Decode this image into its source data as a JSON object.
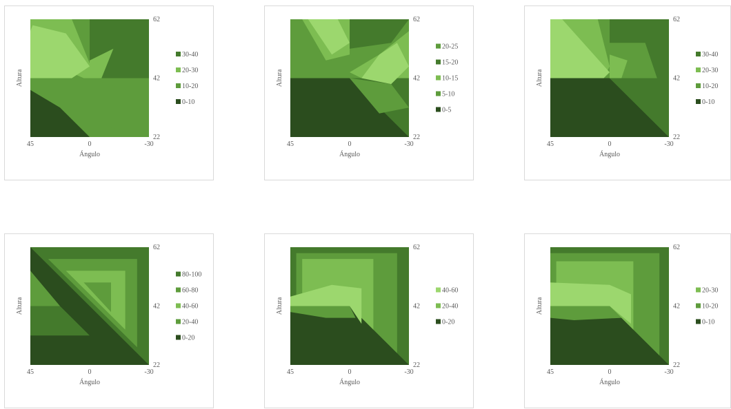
{
  "colors": {
    "band_light": "#9cd76e",
    "band_2": "#7dbd52",
    "band_3": "#5e9c3c",
    "band_4": "#447a2c",
    "band_dark": "#2b4d1e",
    "panel_border": "#d9d9d9",
    "text": "#595959"
  },
  "chart_data": [
    {
      "type": "contour",
      "xlabel": "Ángulo",
      "ylabel": "Altura",
      "x_ticks": [
        "45",
        "0",
        "-30"
      ],
      "y_ticks": [
        "62",
        "42",
        "22"
      ],
      "x_range": [
        45,
        -30
      ],
      "y_range": [
        22,
        62
      ],
      "legend": [
        "30-40",
        "20-30",
        "10-20",
        "0-10"
      ]
    },
    {
      "type": "contour",
      "xlabel": "Ángulo",
      "ylabel": "Altura",
      "x_ticks": [
        "45",
        "0",
        "-30"
      ],
      "y_ticks": [
        "62",
        "42",
        "22"
      ],
      "x_range": [
        45,
        -30
      ],
      "y_range": [
        22,
        62
      ],
      "legend": [
        "20-25",
        "15-20",
        "10-15",
        "5-10",
        "0-5"
      ]
    },
    {
      "type": "contour",
      "xlabel": "Ángulo",
      "ylabel": "Altura",
      "x_ticks": [
        "45",
        "0",
        "-30"
      ],
      "y_ticks": [
        "62",
        "42",
        "22"
      ],
      "x_range": [
        45,
        -30
      ],
      "y_range": [
        22,
        62
      ],
      "legend": [
        "30-40",
        "20-30",
        "10-20",
        "0-10"
      ]
    },
    {
      "type": "contour",
      "xlabel": "Ángulo",
      "ylabel": "Altura",
      "x_ticks": [
        "45",
        "0",
        "-30"
      ],
      "y_ticks": [
        "62",
        "42",
        "22"
      ],
      "x_range": [
        45,
        -30
      ],
      "y_range": [
        22,
        62
      ],
      "legend": [
        "80-100",
        "60-80",
        "40-60",
        "20-40",
        "0-20"
      ]
    },
    {
      "type": "contour",
      "xlabel": "Ángulo",
      "ylabel": "Altura",
      "x_ticks": [
        "45",
        "0",
        "-30"
      ],
      "y_ticks": [
        "62",
        "42",
        "22"
      ],
      "x_range": [
        45,
        -30
      ],
      "y_range": [
        22,
        62
      ],
      "legend": [
        "40-60",
        "20-40",
        "0-20"
      ]
    },
    {
      "type": "contour",
      "xlabel": "Ángulo",
      "ylabel": "Altura",
      "x_ticks": [
        "45",
        "0",
        "-30"
      ],
      "y_ticks": [
        "62",
        "42",
        "22"
      ],
      "x_range": [
        45,
        -30
      ],
      "y_range": [
        22,
        62
      ],
      "legend": [
        "20-30",
        "10-20",
        "0-10"
      ]
    }
  ]
}
